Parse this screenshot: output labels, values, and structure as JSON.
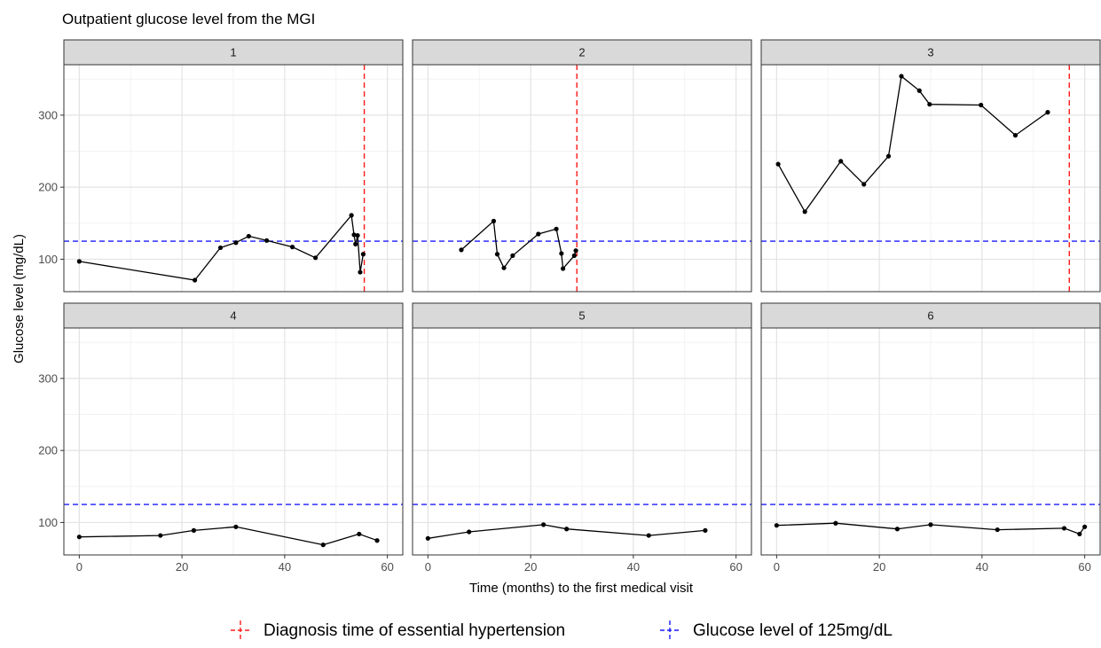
{
  "chart_data": {
    "type": "line",
    "title": "Outpatient glucose level from the MGI",
    "xlabel": "Time (months) to the first medical visit",
    "ylabel": "Glucose level (mg/dL)",
    "xlim": [
      -3,
      63
    ],
    "ylim": [
      55,
      370
    ],
    "x_ticks": [
      0,
      20,
      40,
      60
    ],
    "y_ticks": [
      100,
      200,
      300
    ],
    "grid": true,
    "legend_position": "bottom",
    "colors": {
      "series": "#000000",
      "diagnosis": "#ff1a1a",
      "threshold": "#1a1aff",
      "strip_fill": "#d9d9d9",
      "grid_major": "#e3e3e3",
      "grid_minor": "#f2f2f2"
    },
    "reference_lines": {
      "threshold_value": 125,
      "threshold_label": "Glucose level of 125mg/dL",
      "diagnosis_label": "Diagnosis time of essential hypertension"
    },
    "panels": [
      {
        "label": "1",
        "diagnosis_x": 55.5,
        "points": [
          [
            0,
            97
          ],
          [
            22.5,
            71
          ],
          [
            27.5,
            116
          ],
          [
            30.5,
            123
          ],
          [
            33,
            132
          ],
          [
            36.5,
            126
          ],
          [
            41.5,
            117
          ],
          [
            46,
            102
          ],
          [
            53,
            161
          ],
          [
            53.5,
            134
          ],
          [
            53.8,
            121
          ],
          [
            54.2,
            133
          ],
          [
            54.7,
            82
          ],
          [
            55.3,
            107
          ]
        ]
      },
      {
        "label": "2",
        "diagnosis_x": 29,
        "points": [
          [
            6.5,
            113
          ],
          [
            12.8,
            153
          ],
          [
            13.5,
            107
          ],
          [
            14.8,
            88
          ],
          [
            16.5,
            105
          ],
          [
            21.5,
            135
          ],
          [
            25,
            142
          ],
          [
            26,
            108
          ],
          [
            26.3,
            87
          ],
          [
            28.5,
            105
          ],
          [
            28.8,
            112
          ]
        ]
      },
      {
        "label": "3",
        "diagnosis_x": 57,
        "points": [
          [
            0.3,
            232
          ],
          [
            5.5,
            166
          ],
          [
            12.5,
            236
          ],
          [
            17,
            204
          ],
          [
            21.8,
            243
          ],
          [
            24.3,
            354
          ],
          [
            27.8,
            334
          ],
          [
            29.8,
            315
          ],
          [
            39.8,
            314
          ],
          [
            46.5,
            272
          ],
          [
            52.8,
            304
          ]
        ]
      },
      {
        "label": "4",
        "diagnosis_x": null,
        "points": [
          [
            0,
            80
          ],
          [
            15.8,
            82
          ],
          [
            22.3,
            89
          ],
          [
            30.5,
            94
          ],
          [
            47.5,
            69
          ],
          [
            54.5,
            84
          ],
          [
            58,
            75
          ]
        ]
      },
      {
        "label": "5",
        "diagnosis_x": null,
        "points": [
          [
            0,
            78
          ],
          [
            8,
            87
          ],
          [
            22.5,
            97
          ],
          [
            27,
            91
          ],
          [
            43,
            82
          ],
          [
            54,
            89
          ]
        ]
      },
      {
        "label": "6",
        "diagnosis_x": null,
        "points": [
          [
            0,
            96
          ],
          [
            11.5,
            99
          ],
          [
            23.5,
            91
          ],
          [
            30,
            97
          ],
          [
            43,
            90
          ],
          [
            56,
            92
          ],
          [
            59,
            84
          ],
          [
            60,
            94
          ]
        ]
      }
    ]
  }
}
